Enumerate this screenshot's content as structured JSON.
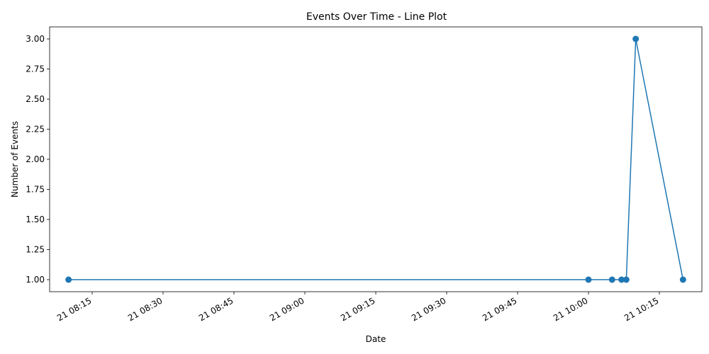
{
  "chart_data": {
    "type": "line",
    "title": "Events Over Time - Line Plot",
    "xlabel": "Date",
    "ylabel": "Number of Events",
    "x": [
      "21 08:10",
      "21 10:00",
      "21 10:05",
      "21 10:07",
      "21 10:08",
      "21 10:10",
      "21 10:20"
    ],
    "values": [
      1,
      1,
      1,
      1,
      1,
      3,
      1
    ],
    "x_ticks": [
      "21 08:15",
      "21 08:30",
      "21 08:45",
      "21 09:00",
      "21 09:15",
      "21 09:30",
      "21 09:45",
      "21 10:00",
      "21 10:15"
    ],
    "y_ticks": [
      "1.00",
      "1.25",
      "1.50",
      "1.75",
      "2.00",
      "2.25",
      "2.50",
      "2.75",
      "3.00"
    ],
    "ylim": [
      0.9,
      3.1
    ],
    "xlim": [
      "21 08:06",
      "21 10:24"
    ],
    "grid": false,
    "marker": "circle",
    "colors": {
      "series": "#1f77b4",
      "axis": "#000000"
    }
  }
}
